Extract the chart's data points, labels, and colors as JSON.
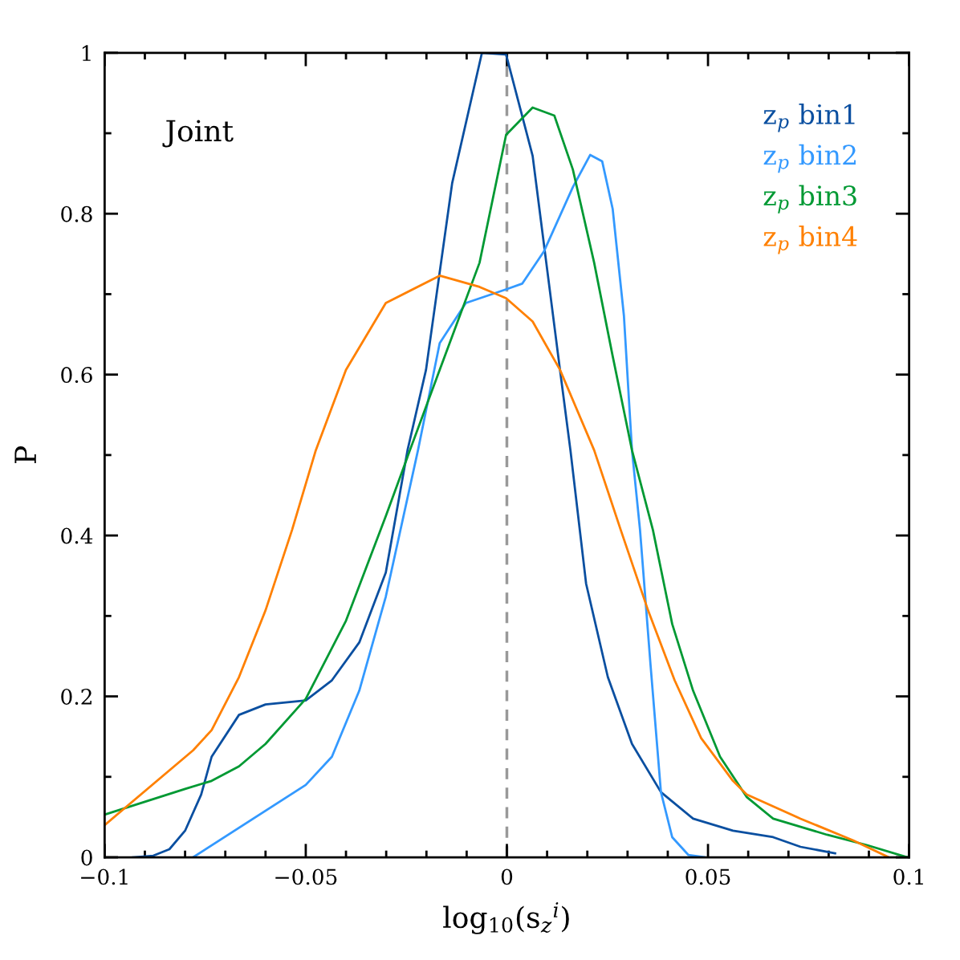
{
  "chart_data": {
    "type": "line",
    "xlabel": "log$_{10}$(s$_{z}$$^{i}$)",
    "ylabel": "P",
    "annotations": [
      "Joint"
    ],
    "xlim": [
      -0.1,
      0.1
    ],
    "ylim": [
      0,
      1
    ],
    "xticks": [
      {
        "value": -0.1,
        "label": "−0.1"
      },
      {
        "value": -0.09,
        "label": null
      },
      {
        "value": -0.08,
        "label": null
      },
      {
        "value": -0.07,
        "label": null
      },
      {
        "value": -0.06,
        "label": null
      },
      {
        "value": -0.05,
        "label": "−0.05"
      },
      {
        "value": -0.04,
        "label": null
      },
      {
        "value": -0.03,
        "label": null
      },
      {
        "value": -0.02,
        "label": null
      },
      {
        "value": -0.01,
        "label": null
      },
      0,
      {
        "value": 0.01,
        "label": null
      },
      {
        "value": 0.02,
        "label": null
      },
      {
        "value": 0.03,
        "label": null
      },
      {
        "value": 0.04,
        "label": null
      },
      0.05,
      {
        "value": 0.06,
        "label": null
      },
      {
        "value": 0.07,
        "label": null
      },
      {
        "value": 0.08,
        "label": null
      },
      {
        "value": 0.09,
        "label": null
      },
      0.1
    ],
    "yticks": [
      0,
      {
        "value": 0.1,
        "label": null
      },
      0.2,
      {
        "value": 0.3,
        "label": null
      },
      0.4,
      {
        "value": 0.5,
        "label": null
      },
      0.6,
      {
        "value": 0.7,
        "label": null
      },
      0.8,
      {
        "value": 0.9,
        "label": null
      },
      1
    ],
    "ref_lines": [
      {
        "axis": "x",
        "value": 0,
        "color": "#999999",
        "line_style": "dashed"
      }
    ],
    "grid": false,
    "legend": "top right",
    "marker": "none",
    "line_style": "solid",
    "series": [
      {
        "name": "z$_{p}$ bin1",
        "color": "#0a4fa0",
        "x": [
          -0.0929,
          -0.0879,
          -0.0839,
          -0.08,
          -0.076,
          -0.0734,
          -0.0666,
          -0.06,
          -0.05,
          -0.0435,
          -0.0367,
          -0.0301,
          -0.0247,
          -0.0201,
          -0.0136,
          -0.0062,
          -0.0002,
          0.0064,
          0.0098,
          0.0132,
          0.0158,
          0.0197,
          0.0251,
          0.0311,
          0.0383,
          0.0463,
          0.0562,
          0.0662,
          0.073,
          0.0816
        ],
        "values": [
          0,
          0.002,
          0.01,
          0.033,
          0.078,
          0.125,
          0.177,
          0.19,
          0.195,
          0.22,
          0.267,
          0.354,
          0.506,
          0.606,
          0.838,
          1.0,
          0.998,
          0.872,
          0.739,
          0.606,
          0.506,
          0.34,
          0.224,
          0.141,
          0.081,
          0.048,
          0.033,
          0.025,
          0.013,
          0.005
        ]
      },
      {
        "name": "z$_{p}$ bin2",
        "color": "#3399ff",
        "x": [
          -0.078,
          -0.05,
          -0.0435,
          -0.0367,
          -0.0301,
          -0.0221,
          -0.0167,
          -0.0102,
          -0.0002,
          0.0038,
          0.0092,
          0.0164,
          0.0207,
          0.0237,
          0.0263,
          0.0291,
          0.0311,
          0.0331,
          0.0357,
          0.0383,
          0.0411,
          0.0451,
          0.0491
        ],
        "values": [
          0,
          0.09,
          0.125,
          0.207,
          0.324,
          0.506,
          0.639,
          0.689,
          0.706,
          0.713,
          0.753,
          0.833,
          0.873,
          0.865,
          0.806,
          0.673,
          0.506,
          0.407,
          0.24,
          0.081,
          0.025,
          0.003,
          0
        ]
      },
      {
        "name": "z$_{p}$ bin3",
        "color": "#009933",
        "x": [
          -0.1,
          -0.08,
          -0.0734,
          -0.0666,
          -0.06,
          -0.05,
          -0.04,
          -0.0301,
          -0.0241,
          -0.0167,
          -0.0068,
          -0.0002,
          0.0064,
          0.0118,
          0.0164,
          0.0217,
          0.0263,
          0.0311,
          0.0363,
          0.0411,
          0.0463,
          0.053,
          0.0596,
          0.0662,
          0.0796,
          0.0896,
          0.0995
        ],
        "values": [
          0.053,
          0.085,
          0.095,
          0.113,
          0.141,
          0.197,
          0.294,
          0.424,
          0.506,
          0.606,
          0.739,
          0.898,
          0.932,
          0.922,
          0.855,
          0.739,
          0.623,
          0.506,
          0.407,
          0.29,
          0.207,
          0.125,
          0.075,
          0.048,
          0.028,
          0.015,
          0
        ]
      },
      {
        "name": "z$_{p}$ bin4",
        "color": "#ff8000",
        "x": [
          -0.1,
          -0.078,
          -0.0734,
          -0.0666,
          -0.06,
          -0.0534,
          -0.0475,
          -0.04,
          -0.0301,
          -0.0167,
          -0.0068,
          -0.0002,
          0.0064,
          0.0132,
          0.0217,
          0.0283,
          0.0351,
          0.0417,
          0.0483,
          0.0562,
          0.0596,
          0.073,
          0.0861,
          0.0949
        ],
        "values": [
          0.04,
          0.133,
          0.158,
          0.224,
          0.307,
          0.407,
          0.506,
          0.606,
          0.689,
          0.723,
          0.709,
          0.695,
          0.666,
          0.606,
          0.506,
          0.407,
          0.307,
          0.22,
          0.148,
          0.095,
          0.078,
          0.048,
          0.021,
          0
        ]
      }
    ]
  }
}
